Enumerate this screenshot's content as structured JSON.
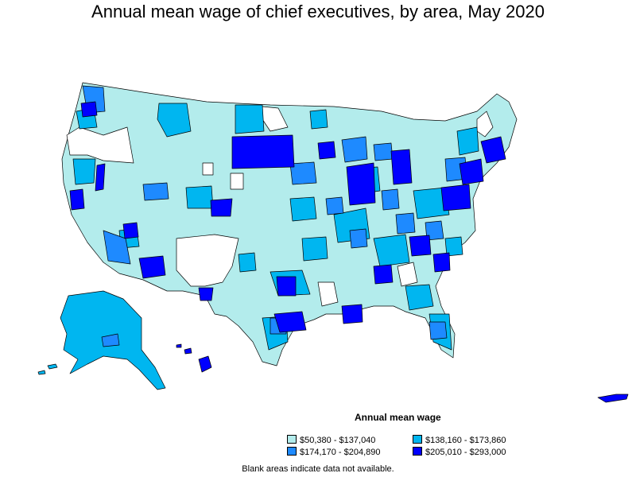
{
  "title": "Annual mean wage of chief executives, by area, May 2020",
  "legend": {
    "title": "Annual mean wage",
    "items": [
      {
        "label": "$50,380 - $137,040",
        "color": "#b3ecec"
      },
      {
        "label": "$138,160 - $173,860",
        "color": "#00b6f0"
      },
      {
        "label": "$174,170 - $204,890",
        "color": "#1e8aff"
      },
      {
        "label": "$205,010 - $293,000",
        "color": "#0000ff"
      }
    ]
  },
  "footnote": "Blank areas indicate data not available.",
  "colors": {
    "blank": "#ffffff",
    "outline": "#000000"
  }
}
